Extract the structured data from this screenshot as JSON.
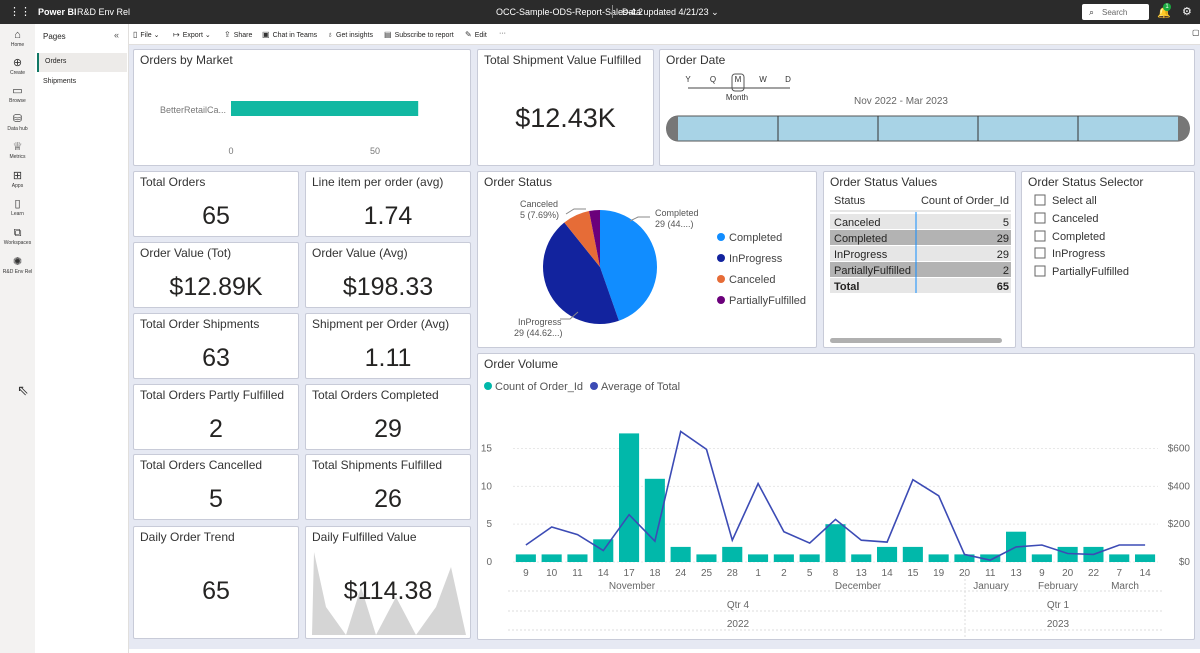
{
  "topbar": {
    "app": "Power BI",
    "workspace": "R&D Env Rel",
    "report": "OCC-Sample-ODS-Report-Sales-4.2",
    "updated": "Data updated 4/21/23",
    "search_placeholder": "Search",
    "notifications": "1"
  },
  "leftnav": [
    {
      "label": "Home",
      "icon": "home-icon"
    },
    {
      "label": "Create",
      "icon": "plus-icon"
    },
    {
      "label": "Browse",
      "icon": "folder-icon"
    },
    {
      "label": "Data hub",
      "icon": "datahub-icon"
    },
    {
      "label": "Metrics",
      "icon": "trophy-icon"
    },
    {
      "label": "Apps",
      "icon": "apps-icon"
    },
    {
      "label": "Learn",
      "icon": "book-icon"
    },
    {
      "label": "Workspaces",
      "icon": "workspaces-icon"
    },
    {
      "label": "R&D Env Rel",
      "icon": "workspace-icon"
    }
  ],
  "pages": {
    "title": "Pages",
    "items": [
      "Orders",
      "Shipments"
    ],
    "active": 0
  },
  "commands": [
    "File",
    "Export",
    "Share",
    "Chat in Teams",
    "Get insights",
    "Subscribe to report",
    "Edit",
    "···"
  ],
  "orders_by_market": {
    "title": "Orders by Market",
    "category": "BetterRetailCa...",
    "value": 65,
    "ticks": [
      "0",
      "50"
    ],
    "color": "#11b8a2"
  },
  "total_shipment_value": {
    "title": "Total Shipment Value Fulfilled",
    "value": "$12.43K"
  },
  "order_date": {
    "title": "Order Date",
    "levels": [
      "Y",
      "Q",
      "M",
      "W",
      "D"
    ],
    "selected_level": "Month",
    "range": "Nov 2022 - Mar 2023"
  },
  "kpis": [
    {
      "title": "Total Orders",
      "value": "65"
    },
    {
      "title": "Line item per order (avg)",
      "value": "1.74"
    },
    {
      "title": "Order Value (Tot)",
      "value": "$12.89K"
    },
    {
      "title": "Order Value (Avg)",
      "value": "$198.33"
    },
    {
      "title": "Total Order Shipments",
      "value": "63"
    },
    {
      "title": "Shipment per Order (Avg)",
      "value": "1.11"
    },
    {
      "title": "Total Orders Partly Fulfilled",
      "value": "2"
    },
    {
      "title": "Total Orders Completed",
      "value": "29"
    },
    {
      "title": "Total Orders Cancelled",
      "value": "5"
    },
    {
      "title": "Total Shipments Fulfilled",
      "value": "26"
    },
    {
      "title": "Daily Order Trend",
      "value": "65"
    },
    {
      "title": "Daily Fulfilled Value",
      "value": "$114.38"
    }
  ],
  "order_status": {
    "title": "Order Status",
    "labels": {
      "canceled": "Canceled",
      "canceled_val": "5 (7.69%)",
      "completed": "Completed",
      "completed_val": "29 (44....)",
      "inprogress": "InProgress",
      "inprogress_val": "29 (44.62...)"
    },
    "legend": [
      "Completed",
      "InProgress",
      "Canceled",
      "PartiallyFulfilled"
    ]
  },
  "status_values": {
    "title": "Order Status Values",
    "columns": [
      "Status",
      "Count of Order_Id"
    ],
    "rows": [
      [
        "Canceled",
        "5"
      ],
      [
        "Completed",
        "29"
      ],
      [
        "InProgress",
        "29"
      ],
      [
        "PartiallyFulfilled",
        "2"
      ]
    ],
    "total": [
      "Total",
      "65"
    ]
  },
  "status_selector": {
    "title": "Order Status Selector",
    "options": [
      "Select all",
      "Canceled",
      "Completed",
      "InProgress",
      "PartiallyFulfilled"
    ]
  },
  "order_volume": {
    "title": "Order Volume",
    "legend": [
      "Count of Order_Id",
      "Average of Total"
    ],
    "months": [
      "November",
      "December",
      "January",
      "February",
      "March"
    ],
    "quarters": [
      "Qtr 4",
      "Qtr 1"
    ],
    "years": [
      "2022",
      "2023"
    ]
  },
  "chart_data": [
    {
      "type": "pie",
      "title": "Order Status",
      "categories": [
        "Completed",
        "InProgress",
        "Canceled",
        "PartiallyFulfilled"
      ],
      "values": [
        29,
        29,
        5,
        2
      ],
      "colors": [
        "#118dff",
        "#12239e",
        "#e66c37",
        "#6b007b"
      ]
    },
    {
      "type": "bar",
      "title": "Order Volume",
      "x": [
        "9",
        "10",
        "11",
        "14",
        "17",
        "18",
        "24",
        "25",
        "28",
        "1",
        "2",
        "5",
        "8",
        "13",
        "14",
        "15",
        "19",
        "20",
        "11",
        "13",
        "9",
        "20",
        "22",
        "7",
        "14"
      ],
      "series": [
        {
          "name": "Count of Order_Id",
          "type": "bar",
          "axis": "left",
          "color": "#01b8aa",
          "values": [
            1,
            1,
            1,
            3,
            17,
            11,
            2,
            1,
            2,
            1,
            1,
            1,
            5,
            1,
            2,
            2,
            1,
            1,
            1,
            4,
            1,
            2,
            2,
            1,
            1
          ]
        },
        {
          "name": "Average of Total",
          "type": "line",
          "axis": "right",
          "color": "#3c4bb5",
          "values": [
            90,
            185,
            145,
            60,
            250,
            110,
            690,
            595,
            115,
            415,
            160,
            100,
            225,
            115,
            105,
            435,
            350,
            40,
            10,
            80,
            90,
            45,
            40,
            90,
            90
          ]
        }
      ],
      "y_ticks": [
        "0",
        "5",
        "10",
        "15"
      ],
      "ylim": [
        0,
        18.5
      ],
      "y2_ticks": [
        "$0",
        "$200",
        "$400",
        "$600"
      ],
      "y2lim": [
        0,
        740
      ]
    }
  ]
}
